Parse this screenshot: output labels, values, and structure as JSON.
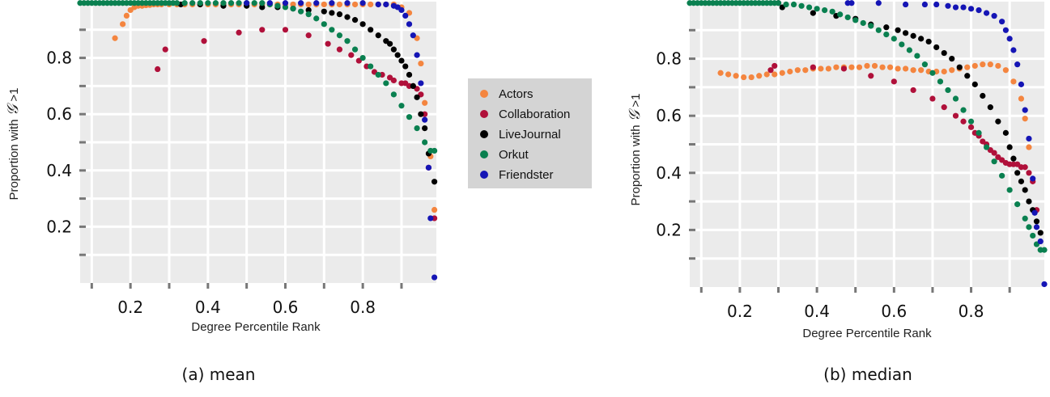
{
  "colors": {
    "panel_bg": "#ebebeb",
    "grid": "#ffffff",
    "legend_bg": "#d4d4d4",
    "Actors": "#f4853f",
    "Collaboration": "#b0103a",
    "LiveJournal": "#000000",
    "Orkut": "#0a8050",
    "Friendster": "#1515b5"
  },
  "legend": [
    "Actors",
    "Collaboration",
    "LiveJournal",
    "Orkut",
    "Friendster"
  ],
  "chart_data": [
    {
      "type": "scatter",
      "caption": "(a) mean",
      "xlabel": "Degree Percentile Rank",
      "ylabel_prefix": "Proportion with ",
      "ylabel_symbol": "𝒢",
      "ylabel_suffix": " >1",
      "xlim": [
        0.07,
        0.99
      ],
      "ylim": [
        0.0,
        1.0
      ],
      "xticks": [
        "0.2",
        "0.4",
        "0.6",
        "0.8"
      ],
      "yticks": [
        "0.2",
        "0.4",
        "0.6",
        "0.8"
      ],
      "grid": true,
      "series": [
        {
          "name": "Actors",
          "x": [
            0.16,
            0.18,
            0.19,
            0.2,
            0.21,
            0.22,
            0.23,
            0.24,
            0.25,
            0.26,
            0.27,
            0.28,
            0.3,
            0.32,
            0.34,
            0.36,
            0.38,
            0.4,
            0.42,
            0.44,
            0.46,
            0.48,
            0.5,
            0.52,
            0.54,
            0.56,
            0.58,
            0.6,
            0.62,
            0.64,
            0.66,
            0.68,
            0.7,
            0.72,
            0.74,
            0.76,
            0.78,
            0.8,
            0.82,
            0.84,
            0.86,
            0.88,
            0.9,
            0.92,
            0.94,
            0.95,
            0.96,
            0.975,
            0.985
          ],
          "y": [
            0.87,
            0.92,
            0.95,
            0.97,
            0.98,
            0.985,
            0.985,
            0.987,
            0.988,
            0.99,
            0.99,
            0.99,
            0.99,
            0.99,
            0.99,
            0.99,
            0.99,
            0.99,
            0.99,
            0.99,
            0.99,
            0.99,
            0.99,
            0.99,
            0.99,
            0.99,
            0.99,
            0.99,
            0.99,
            0.99,
            0.99,
            0.99,
            0.99,
            0.99,
            0.99,
            0.99,
            0.99,
            0.99,
            0.99,
            0.99,
            0.99,
            0.99,
            0.98,
            0.96,
            0.87,
            0.78,
            0.64,
            0.45,
            0.26
          ]
        },
        {
          "name": "Collaboration",
          "x": [
            0.27,
            0.29,
            0.39,
            0.48,
            0.54,
            0.6,
            0.66,
            0.71,
            0.74,
            0.77,
            0.79,
            0.81,
            0.83,
            0.85,
            0.87,
            0.88,
            0.9,
            0.91,
            0.92,
            0.93,
            0.94,
            0.95,
            0.96,
            0.97,
            0.985
          ],
          "y": [
            0.76,
            0.83,
            0.86,
            0.89,
            0.9,
            0.9,
            0.88,
            0.85,
            0.83,
            0.81,
            0.79,
            0.77,
            0.75,
            0.74,
            0.73,
            0.72,
            0.71,
            0.71,
            0.7,
            0.7,
            0.69,
            0.67,
            0.6,
            0.41,
            0.23
          ]
        },
        {
          "name": "LiveJournal",
          "x": [
            0.33,
            0.38,
            0.44,
            0.5,
            0.54,
            0.58,
            0.62,
            0.66,
            0.7,
            0.72,
            0.74,
            0.76,
            0.78,
            0.8,
            0.82,
            0.84,
            0.86,
            0.87,
            0.88,
            0.89,
            0.9,
            0.91,
            0.92,
            0.93,
            0.94,
            0.95,
            0.96,
            0.97,
            0.985
          ],
          "y": [
            0.99,
            0.99,
            0.985,
            0.985,
            0.98,
            0.98,
            0.975,
            0.97,
            0.965,
            0.96,
            0.955,
            0.945,
            0.935,
            0.92,
            0.9,
            0.88,
            0.86,
            0.85,
            0.83,
            0.81,
            0.79,
            0.77,
            0.74,
            0.7,
            0.66,
            0.6,
            0.55,
            0.46,
            0.36
          ]
        },
        {
          "name": "Orkut",
          "x": [
            0.07,
            0.08,
            0.09,
            0.1,
            0.11,
            0.12,
            0.13,
            0.14,
            0.15,
            0.16,
            0.17,
            0.18,
            0.19,
            0.2,
            0.21,
            0.22,
            0.23,
            0.24,
            0.25,
            0.26,
            0.27,
            0.28,
            0.29,
            0.3,
            0.31,
            0.32,
            0.34,
            0.36,
            0.38,
            0.4,
            0.42,
            0.44,
            0.46,
            0.48,
            0.5,
            0.52,
            0.54,
            0.56,
            0.58,
            0.6,
            0.62,
            0.64,
            0.66,
            0.68,
            0.7,
            0.72,
            0.74,
            0.76,
            0.78,
            0.8,
            0.82,
            0.84,
            0.86,
            0.88,
            0.9,
            0.92,
            0.94,
            0.96,
            0.975,
            0.985
          ],
          "y": [
            0.995,
            0.995,
            0.995,
            0.995,
            0.995,
            0.995,
            0.995,
            0.995,
            0.995,
            0.995,
            0.995,
            0.995,
            0.995,
            0.995,
            0.995,
            0.995,
            0.995,
            0.995,
            0.995,
            0.995,
            0.995,
            0.995,
            0.995,
            0.995,
            0.995,
            0.995,
            0.995,
            0.995,
            0.995,
            0.995,
            0.995,
            0.995,
            0.995,
            0.995,
            0.995,
            0.995,
            0.995,
            0.99,
            0.985,
            0.98,
            0.975,
            0.965,
            0.955,
            0.94,
            0.92,
            0.9,
            0.88,
            0.86,
            0.83,
            0.8,
            0.77,
            0.74,
            0.71,
            0.67,
            0.63,
            0.59,
            0.55,
            0.5,
            0.47,
            0.47
          ]
        },
        {
          "name": "Friendster",
          "x": [
            0.5,
            0.56,
            0.6,
            0.64,
            0.68,
            0.72,
            0.76,
            0.8,
            0.84,
            0.86,
            0.88,
            0.89,
            0.9,
            0.91,
            0.92,
            0.93,
            0.94,
            0.95,
            0.96,
            0.97,
            0.975,
            0.985
          ],
          "y": [
            0.995,
            0.995,
            0.995,
            0.995,
            0.995,
            0.995,
            0.995,
            0.995,
            0.99,
            0.99,
            0.985,
            0.98,
            0.97,
            0.95,
            0.92,
            0.88,
            0.81,
            0.71,
            0.58,
            0.41,
            0.23,
            0.02
          ]
        }
      ]
    },
    {
      "type": "scatter",
      "caption": "(b) median",
      "xlabel": "Degree Percentile Rank",
      "ylabel_prefix": "Proportion with ",
      "ylabel_symbol": "𝒢",
      "ylabel_suffix": " >1",
      "xlim": [
        0.07,
        0.99
      ],
      "ylim": [
        0.0,
        1.0
      ],
      "xticks": [
        "0.2",
        "0.4",
        "0.6",
        "0.8"
      ],
      "yticks": [
        "0.2",
        "0.4",
        "0.6",
        "0.8"
      ],
      "grid": true,
      "series": [
        {
          "name": "Actors",
          "x": [
            0.15,
            0.17,
            0.19,
            0.21,
            0.23,
            0.25,
            0.27,
            0.29,
            0.31,
            0.33,
            0.35,
            0.37,
            0.39,
            0.41,
            0.43,
            0.45,
            0.47,
            0.49,
            0.51,
            0.53,
            0.55,
            0.57,
            0.59,
            0.61,
            0.63,
            0.65,
            0.67,
            0.69,
            0.71,
            0.73,
            0.75,
            0.77,
            0.79,
            0.81,
            0.83,
            0.85,
            0.87,
            0.89,
            0.91,
            0.93,
            0.94,
            0.95
          ],
          "y": [
            0.75,
            0.745,
            0.74,
            0.735,
            0.735,
            0.74,
            0.745,
            0.745,
            0.75,
            0.755,
            0.76,
            0.76,
            0.765,
            0.765,
            0.765,
            0.77,
            0.77,
            0.77,
            0.77,
            0.775,
            0.775,
            0.77,
            0.77,
            0.765,
            0.765,
            0.76,
            0.76,
            0.755,
            0.755,
            0.755,
            0.76,
            0.765,
            0.77,
            0.775,
            0.78,
            0.78,
            0.775,
            0.76,
            0.72,
            0.66,
            0.59,
            0.49
          ]
        },
        {
          "name": "Collaboration",
          "x": [
            0.28,
            0.29,
            0.39,
            0.47,
            0.54,
            0.6,
            0.65,
            0.7,
            0.73,
            0.76,
            0.78,
            0.8,
            0.81,
            0.82,
            0.83,
            0.84,
            0.85,
            0.86,
            0.87,
            0.88,
            0.89,
            0.9,
            0.91,
            0.92,
            0.93,
            0.94,
            0.95,
            0.96,
            0.97
          ],
          "y": [
            0.76,
            0.775,
            0.77,
            0.765,
            0.74,
            0.72,
            0.69,
            0.66,
            0.63,
            0.6,
            0.58,
            0.56,
            0.54,
            0.53,
            0.51,
            0.5,
            0.48,
            0.47,
            0.455,
            0.445,
            0.435,
            0.43,
            0.43,
            0.43,
            0.42,
            0.42,
            0.4,
            0.37,
            0.27
          ]
        },
        {
          "name": "LiveJournal",
          "x": [
            0.3,
            0.31,
            0.39,
            0.45,
            0.5,
            0.54,
            0.58,
            0.61,
            0.63,
            0.65,
            0.67,
            0.69,
            0.71,
            0.73,
            0.75,
            0.77,
            0.79,
            0.81,
            0.83,
            0.85,
            0.87,
            0.89,
            0.9,
            0.91,
            0.92,
            0.93,
            0.94,
            0.95,
            0.96,
            0.97,
            0.98
          ],
          "y": [
            0.995,
            0.98,
            0.96,
            0.95,
            0.94,
            0.92,
            0.91,
            0.9,
            0.89,
            0.88,
            0.87,
            0.86,
            0.84,
            0.82,
            0.8,
            0.77,
            0.74,
            0.71,
            0.67,
            0.63,
            0.58,
            0.54,
            0.49,
            0.45,
            0.4,
            0.37,
            0.34,
            0.3,
            0.27,
            0.23,
            0.19
          ]
        },
        {
          "name": "Orkut",
          "x": [
            0.07,
            0.08,
            0.09,
            0.1,
            0.11,
            0.12,
            0.13,
            0.14,
            0.15,
            0.16,
            0.17,
            0.18,
            0.19,
            0.2,
            0.21,
            0.22,
            0.23,
            0.24,
            0.25,
            0.26,
            0.27,
            0.28,
            0.29,
            0.3,
            0.32,
            0.34,
            0.36,
            0.38,
            0.4,
            0.42,
            0.44,
            0.46,
            0.48,
            0.5,
            0.52,
            0.54,
            0.56,
            0.58,
            0.6,
            0.62,
            0.64,
            0.66,
            0.68,
            0.7,
            0.72,
            0.74,
            0.76,
            0.78,
            0.8,
            0.82,
            0.84,
            0.86,
            0.88,
            0.9,
            0.92,
            0.94,
            0.95,
            0.96,
            0.97,
            0.98,
            0.99
          ],
          "y": [
            0.995,
            0.995,
            0.995,
            0.995,
            0.995,
            0.995,
            0.995,
            0.995,
            0.995,
            0.995,
            0.995,
            0.995,
            0.995,
            0.995,
            0.995,
            0.995,
            0.995,
            0.995,
            0.995,
            0.995,
            0.995,
            0.995,
            0.995,
            0.995,
            0.99,
            0.99,
            0.985,
            0.98,
            0.975,
            0.97,
            0.965,
            0.955,
            0.945,
            0.935,
            0.925,
            0.915,
            0.9,
            0.885,
            0.87,
            0.85,
            0.83,
            0.81,
            0.78,
            0.75,
            0.72,
            0.69,
            0.66,
            0.62,
            0.58,
            0.54,
            0.49,
            0.44,
            0.39,
            0.34,
            0.29,
            0.24,
            0.21,
            0.18,
            0.15,
            0.13,
            0.13
          ]
        },
        {
          "name": "Friendster",
          "x": [
            0.48,
            0.49,
            0.56,
            0.63,
            0.68,
            0.71,
            0.74,
            0.76,
            0.78,
            0.8,
            0.82,
            0.84,
            0.86,
            0.88,
            0.89,
            0.9,
            0.91,
            0.92,
            0.93,
            0.94,
            0.95,
            0.96,
            0.965,
            0.97,
            0.98,
            0.99
          ],
          "y": [
            0.995,
            0.995,
            0.995,
            0.99,
            0.99,
            0.99,
            0.985,
            0.98,
            0.98,
            0.975,
            0.97,
            0.96,
            0.95,
            0.93,
            0.9,
            0.87,
            0.83,
            0.78,
            0.71,
            0.62,
            0.52,
            0.38,
            0.26,
            0.21,
            0.16,
            0.01
          ]
        }
      ]
    }
  ]
}
